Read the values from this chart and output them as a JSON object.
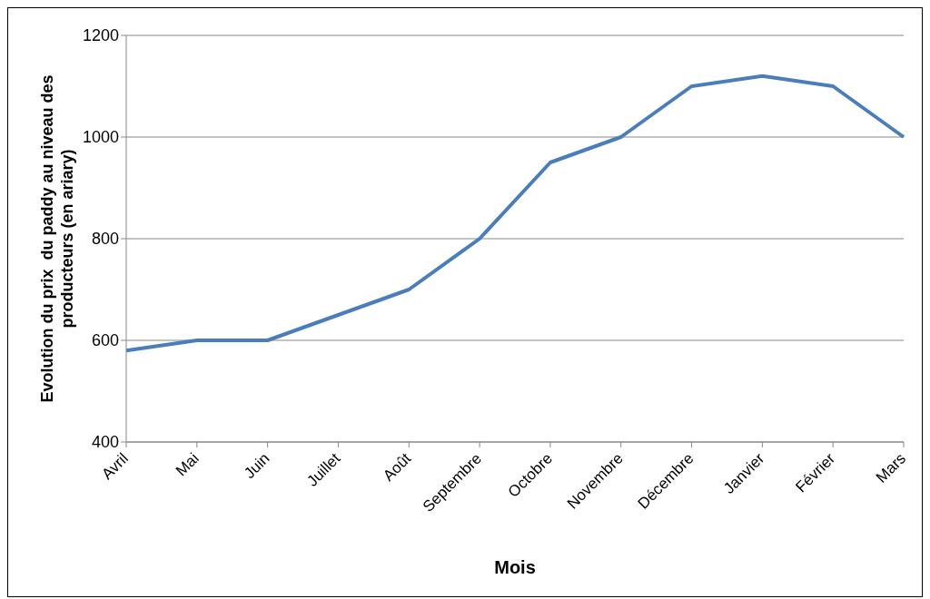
{
  "chart_data": {
    "type": "line",
    "xlabel": "Mois",
    "ylabel": "Evolution du prix  du paddy au niveau des producteurs (en ariary)",
    "categories": [
      "Avril",
      "Mai",
      "Juin",
      "Juillet",
      "Août",
      "Septembre",
      "Octobre",
      "Novembre",
      "Décembre",
      "Janvier",
      "Février",
      "Mars"
    ],
    "series": [
      {
        "color": "#4a7ebb",
        "values": [
          580,
          600,
          600,
          650,
          700,
          800,
          950,
          1000,
          1100,
          1120,
          1100,
          1000
        ]
      }
    ],
    "ylim": [
      400,
      1200
    ],
    "yticks": [
      400,
      600,
      800,
      1000,
      1200
    ],
    "grid": "y",
    "legend": false,
    "marker": "none",
    "line_style": "solid"
  }
}
